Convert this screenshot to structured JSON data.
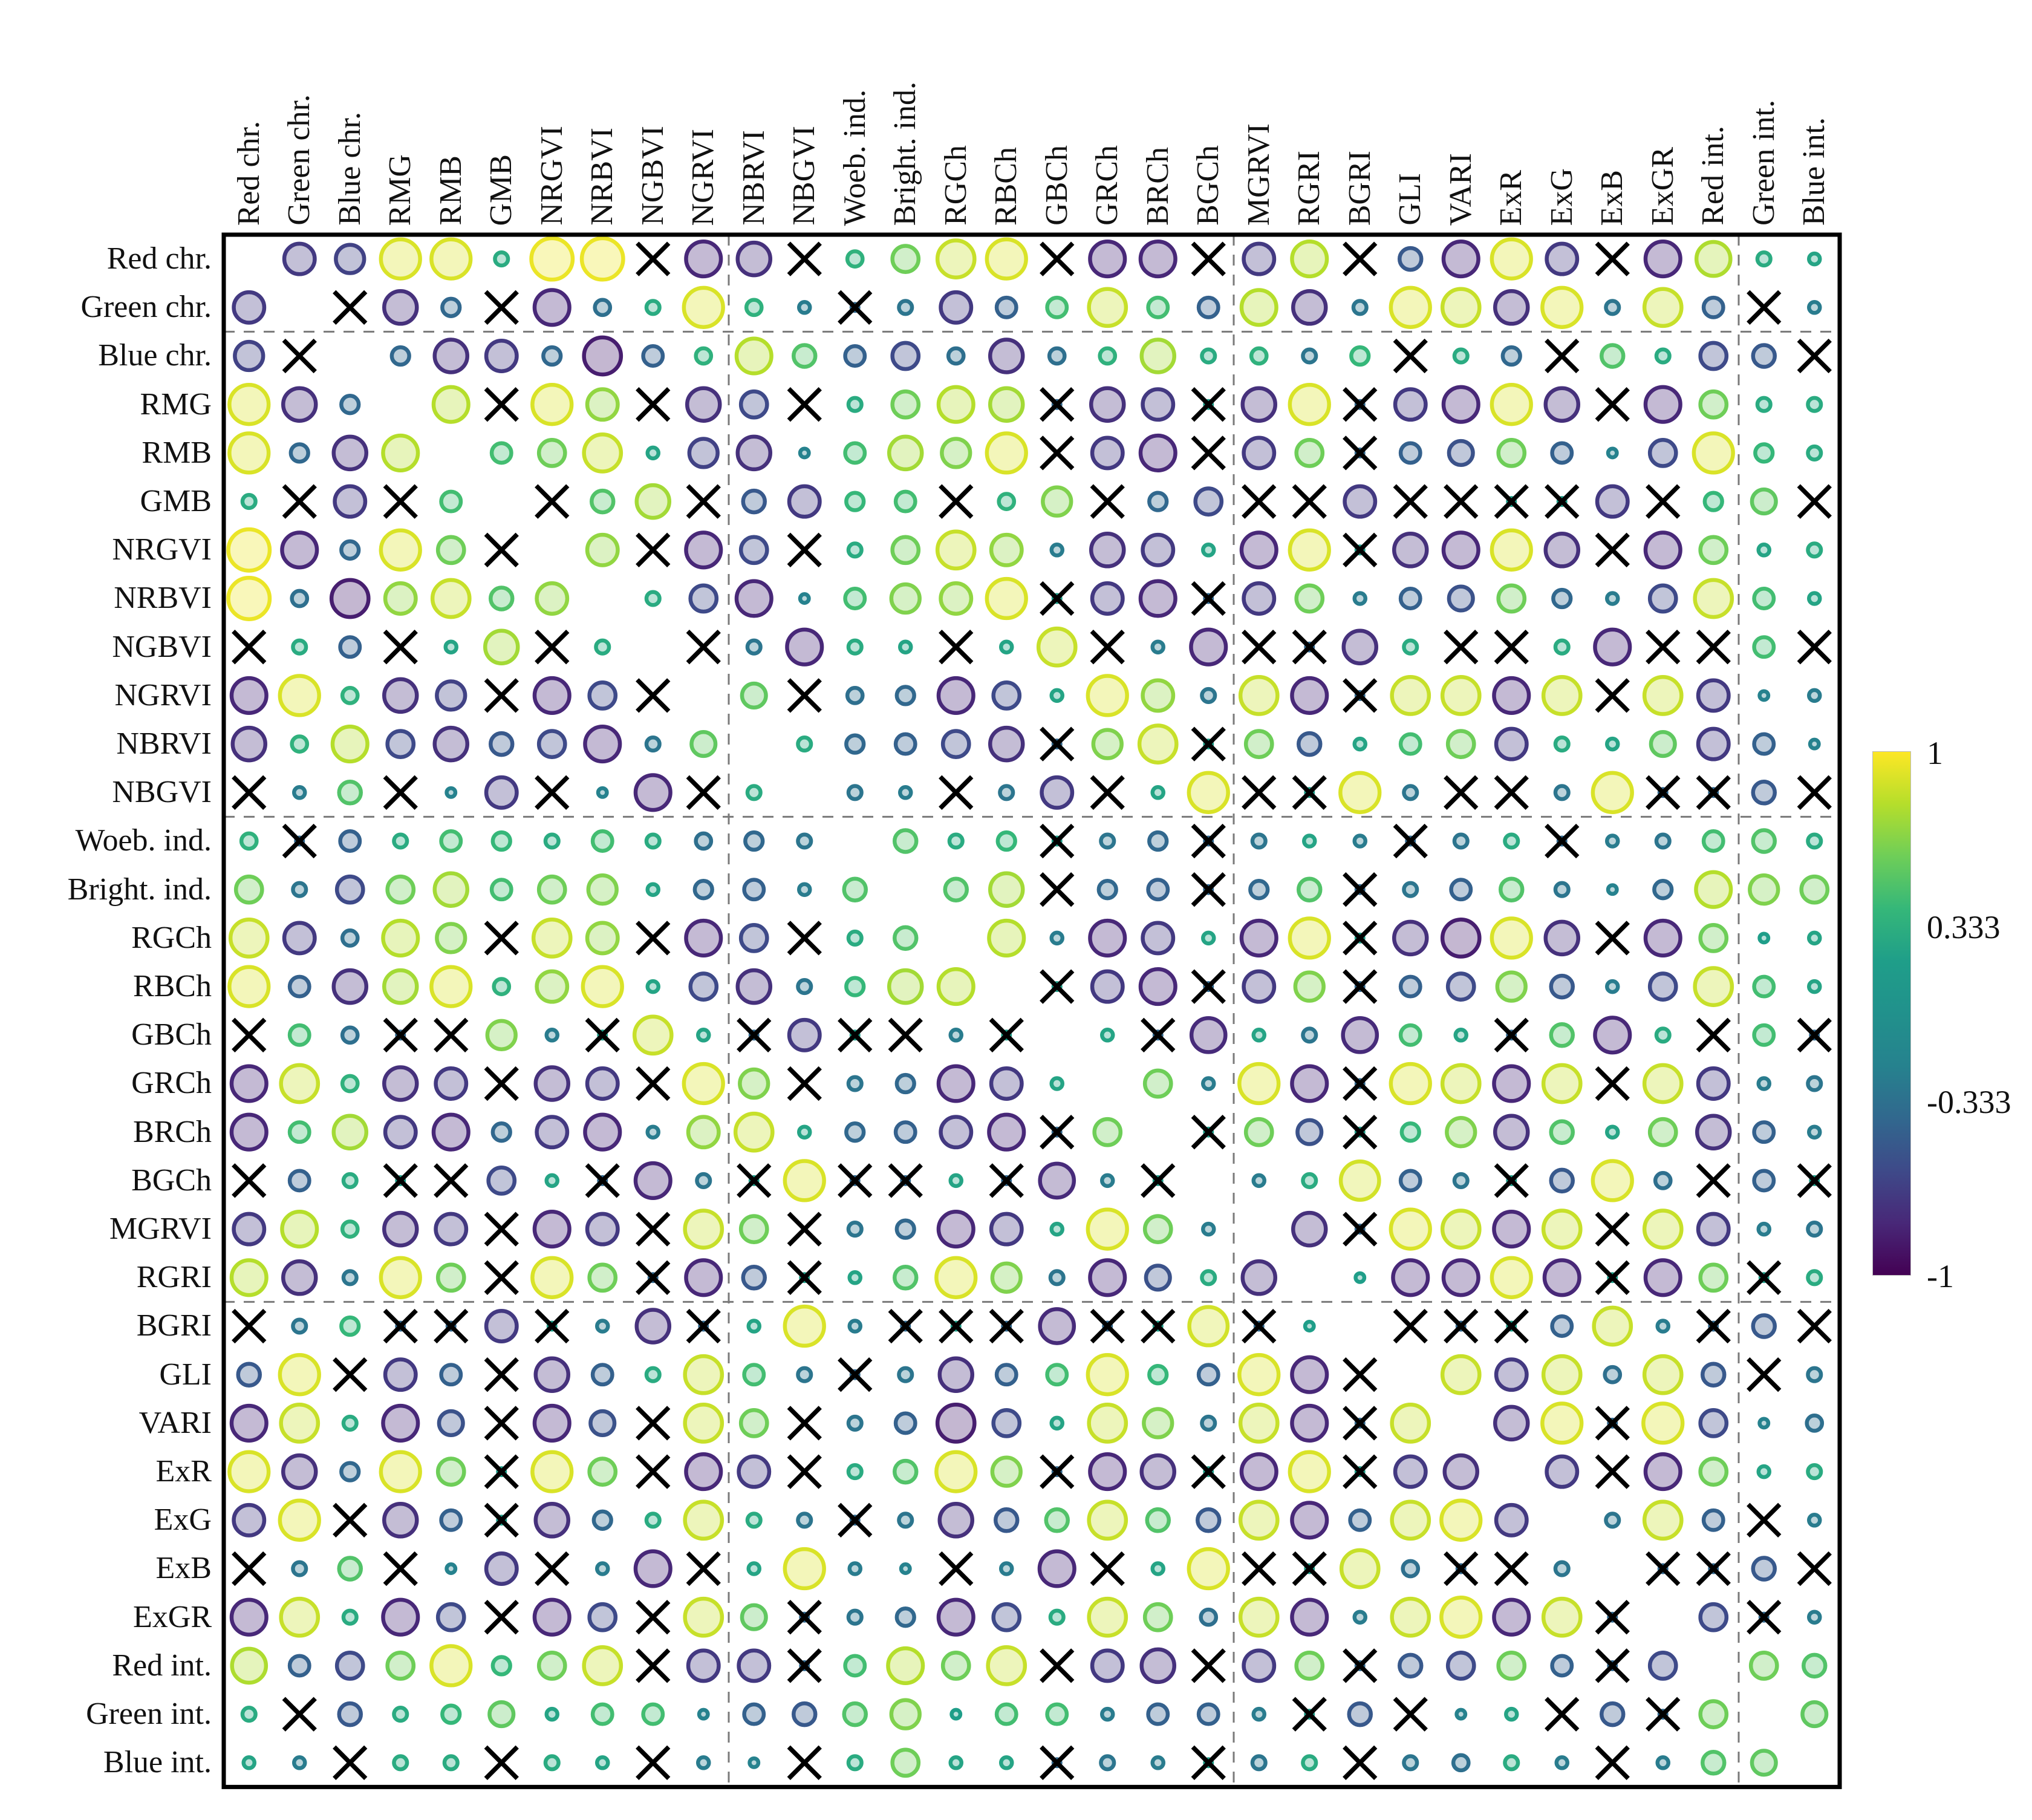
{
  "chart_data": {
    "type": "heatmap",
    "subtype": "correlation-matrix",
    "title": "",
    "variables": [
      "Red chr.",
      "Green chr.",
      "Blue chr.",
      "RMG",
      "RMB",
      "GMB",
      "NRGVI",
      "NRBVI",
      "NGBVI",
      "NGRVI",
      "NBRVI",
      "NBGVI",
      "Woeb. ind.",
      "Bright. ind.",
      "RGCh",
      "RBCh",
      "GBCh",
      "GRCh",
      "BRCh",
      "BGCh",
      "MGRVI",
      "RGRI",
      "BGRI",
      "GLI",
      "VARI",
      "ExR",
      "ExG",
      "ExB",
      "ExGR",
      "Red int.",
      "Green int.",
      "Blue int."
    ],
    "legend_position": "right",
    "colormap": "viridis",
    "value_domain": [
      -1,
      1
    ],
    "colorbar_ticks": [
      "1",
      "0.333",
      "-0.333",
      "-1"
    ],
    "insignificant_marker_meaning": "x = not significant (black cross); xg/xb = cross over tiny teal/blue dot",
    "dashed_dividers": {
      "cols_after_index": [
        9,
        19,
        29
      ],
      "rows_after_index": [
        1,
        11,
        21
      ]
    },
    "matrix": [
      [
        null,
        -0.7,
        -0.65,
        0.9,
        0.9,
        0.3,
        0.95,
        0.95,
        "x",
        -0.8,
        -0.75,
        "x",
        0.35,
        0.6,
        0.85,
        0.9,
        "x",
        -0.8,
        -0.8,
        "x",
        -0.7,
        0.8,
        "x",
        -0.5,
        -0.8,
        0.9,
        -0.7,
        "x",
        -0.8,
        0.78,
        0.3,
        0.25
      ],
      [
        -0.7,
        null,
        "x",
        -0.75,
        -0.4,
        "x",
        -0.8,
        -0.35,
        0.3,
        0.9,
        0.35,
        -0.25,
        "xb",
        -0.3,
        -0.7,
        -0.45,
        0.45,
        0.85,
        0.45,
        -0.45,
        0.8,
        -0.75,
        -0.3,
        0.9,
        0.85,
        -0.75,
        0.9,
        -0.3,
        0.85,
        -0.45,
        "x",
        -0.25
      ],
      [
        -0.65,
        "x",
        null,
        -0.4,
        -0.75,
        -0.7,
        -0.4,
        -0.85,
        -0.45,
        0.35,
        0.8,
        0.5,
        -0.45,
        -0.6,
        -0.35,
        -0.75,
        -0.35,
        0.35,
        0.75,
        0.3,
        0.35,
        -0.3,
        0.4,
        "x",
        0.3,
        -0.4,
        "x",
        0.5,
        0.3,
        -0.6,
        -0.5,
        "x"
      ],
      [
        0.9,
        -0.75,
        -0.4,
        null,
        0.8,
        "x",
        0.9,
        0.7,
        "x",
        -0.75,
        -0.6,
        "x",
        0.3,
        0.6,
        0.8,
        0.75,
        "xb",
        -0.75,
        -0.7,
        "xg",
        -0.75,
        0.9,
        "xb",
        -0.7,
        -0.8,
        0.9,
        -0.75,
        "x",
        -0.8,
        0.6,
        0.3,
        0.3
      ],
      [
        0.9,
        -0.4,
        -0.75,
        0.8,
        null,
        0.45,
        0.6,
        0.85,
        0.25,
        -0.65,
        -0.75,
        -0.2,
        0.45,
        0.75,
        0.65,
        0.9,
        "x",
        -0.7,
        -0.8,
        "x",
        -0.7,
        0.6,
        "xb",
        -0.45,
        -0.55,
        0.6,
        -0.45,
        -0.2,
        -0.6,
        0.9,
        0.4,
        0.3
      ],
      [
        0.3,
        "x",
        -0.7,
        "x",
        0.45,
        null,
        "x",
        0.5,
        0.75,
        "x",
        -0.5,
        -0.7,
        0.4,
        0.45,
        "x",
        0.35,
        0.65,
        "x",
        -0.4,
        -0.6,
        "x",
        "x",
        -0.7,
        "x",
        "x",
        "xg",
        "xg",
        -0.7,
        "x",
        0.4,
        0.55,
        "x"
      ],
      [
        0.95,
        -0.8,
        -0.4,
        0.9,
        0.6,
        "x",
        null,
        0.7,
        "x",
        -0.8,
        -0.6,
        "x",
        0.3,
        0.6,
        0.85,
        0.7,
        -0.25,
        -0.75,
        -0.7,
        0.25,
        -0.8,
        0.9,
        "xg",
        -0.75,
        -0.8,
        0.9,
        -0.75,
        "x",
        -0.8,
        0.6,
        0.25,
        0.3
      ],
      [
        0.95,
        -0.35,
        -0.85,
        0.7,
        0.85,
        0.5,
        0.7,
        null,
        0.3,
        -0.6,
        -0.8,
        -0.2,
        0.45,
        0.65,
        0.7,
        0.9,
        "xg",
        -0.7,
        -0.8,
        "xb",
        -0.7,
        0.6,
        -0.25,
        -0.45,
        -0.55,
        0.6,
        -0.4,
        -0.25,
        -0.6,
        0.85,
        0.45,
        0.25
      ],
      [
        "x",
        0.3,
        -0.45,
        "x",
        0.25,
        0.75,
        "x",
        0.3,
        null,
        "x",
        -0.3,
        -0.8,
        0.3,
        0.25,
        "x",
        0.25,
        0.85,
        "x",
        -0.25,
        -0.8,
        "x",
        "xb",
        -0.75,
        0.3,
        "x",
        "x",
        0.3,
        -0.8,
        "x",
        "x",
        0.45,
        "x"
      ],
      [
        -0.8,
        0.9,
        0.35,
        -0.75,
        -0.65,
        "x",
        -0.8,
        -0.6,
        "x",
        null,
        0.55,
        "x",
        -0.35,
        -0.4,
        -0.8,
        -0.6,
        0.25,
        0.9,
        0.7,
        -0.3,
        0.85,
        -0.8,
        "xb",
        0.85,
        0.85,
        -0.8,
        0.85,
        "x",
        0.85,
        -0.7,
        -0.2,
        -0.25
      ],
      [
        -0.75,
        0.35,
        0.8,
        -0.6,
        -0.75,
        -0.5,
        -0.6,
        -0.8,
        -0.3,
        0.55,
        null,
        0.3,
        -0.4,
        -0.45,
        -0.6,
        -0.75,
        "xb",
        0.65,
        0.85,
        "xg",
        0.6,
        -0.5,
        0.25,
        0.45,
        0.6,
        -0.7,
        0.3,
        0.25,
        0.55,
        -0.7,
        -0.45,
        -0.2
      ],
      [
        "x",
        -0.25,
        0.5,
        "x",
        -0.2,
        -0.7,
        "x",
        -0.2,
        -0.8,
        "x",
        0.3,
        null,
        -0.3,
        -0.25,
        "x",
        -0.3,
        -0.7,
        "x",
        0.25,
        0.9,
        "x",
        "xg",
        0.9,
        -0.3,
        "x",
        "x",
        -0.3,
        0.9,
        "xb",
        "xb",
        -0.5,
        "x"
      ],
      [
        0.35,
        "xb",
        -0.45,
        0.3,
        0.45,
        0.4,
        0.3,
        0.45,
        0.3,
        -0.35,
        -0.4,
        -0.3,
        null,
        0.5,
        0.3,
        0.4,
        "xg",
        -0.3,
        -0.4,
        "xb",
        -0.3,
        0.25,
        -0.25,
        "xb",
        -0.3,
        0.3,
        "xb",
        -0.25,
        -0.3,
        0.45,
        0.5,
        0.3
      ],
      [
        0.6,
        -0.3,
        -0.6,
        0.6,
        0.75,
        0.45,
        0.6,
        0.65,
        0.25,
        -0.4,
        -0.45,
        -0.25,
        0.5,
        null,
        0.5,
        0.75,
        "x",
        -0.4,
        -0.45,
        "xb",
        -0.4,
        0.5,
        "xb",
        -0.3,
        -0.45,
        0.5,
        -0.3,
        -0.2,
        -0.4,
        0.8,
        0.65,
        0.6
      ],
      [
        0.85,
        -0.7,
        -0.35,
        0.8,
        0.65,
        "x",
        0.85,
        0.7,
        "x",
        -0.8,
        -0.6,
        "x",
        0.3,
        0.5,
        null,
        0.8,
        -0.25,
        -0.8,
        -0.7,
        0.25,
        -0.8,
        0.9,
        "xg",
        -0.75,
        -0.85,
        0.9,
        -0.75,
        "x",
        -0.8,
        0.6,
        0.2,
        0.25
      ],
      [
        0.9,
        -0.45,
        -0.75,
        0.75,
        0.9,
        0.35,
        0.7,
        0.9,
        0.25,
        -0.6,
        -0.75,
        -0.3,
        0.4,
        0.75,
        0.8,
        null,
        "xg",
        -0.7,
        -0.8,
        "xb",
        -0.7,
        0.65,
        "xb",
        -0.45,
        -0.6,
        0.65,
        -0.5,
        -0.25,
        -0.6,
        0.85,
        0.45,
        0.25
      ],
      [
        "x",
        0.45,
        -0.35,
        "xb",
        "x",
        0.65,
        -0.25,
        "xg",
        0.85,
        0.25,
        "xb",
        -0.7,
        "xg",
        "x",
        -0.25,
        "xg",
        null,
        0.25,
        "xb",
        -0.78,
        0.25,
        -0.3,
        -0.78,
        0.45,
        0.25,
        "xb",
        0.5,
        -0.8,
        0.3,
        "x",
        0.45,
        "xb"
      ],
      [
        -0.8,
        0.85,
        0.35,
        -0.75,
        -0.7,
        "x",
        -0.75,
        -0.7,
        "x",
        0.9,
        0.65,
        "x",
        -0.3,
        -0.4,
        -0.8,
        -0.7,
        0.25,
        null,
        0.6,
        -0.25,
        0.9,
        -0.8,
        "xb",
        0.9,
        0.85,
        -0.8,
        0.85,
        "x",
        0.85,
        -0.7,
        -0.25,
        -0.3
      ],
      [
        -0.8,
        0.45,
        0.75,
        -0.7,
        -0.8,
        -0.4,
        -0.7,
        -0.8,
        -0.25,
        0.7,
        0.85,
        0.25,
        -0.4,
        -0.45,
        -0.7,
        -0.8,
        "xb",
        0.6,
        null,
        "xg",
        0.6,
        -0.55,
        "xg",
        0.4,
        0.65,
        -0.75,
        0.5,
        0.25,
        0.6,
        -0.75,
        -0.45,
        -0.25
      ],
      [
        "x",
        -0.45,
        0.3,
        "xg",
        "x",
        -0.6,
        0.25,
        "xb",
        -0.8,
        -0.3,
        "xg",
        0.9,
        "xb",
        "xb",
        0.25,
        "xb",
        -0.78,
        -0.25,
        "xg",
        null,
        -0.25,
        0.3,
        0.88,
        -0.45,
        -0.3,
        "xg",
        -0.5,
        0.9,
        -0.35,
        "x",
        -0.45,
        "xg"
      ],
      [
        -0.7,
        0.8,
        0.35,
        -0.75,
        -0.7,
        "x",
        -0.8,
        -0.7,
        "x",
        0.85,
        0.6,
        "x",
        -0.3,
        -0.4,
        -0.8,
        -0.7,
        0.25,
        0.9,
        0.6,
        -0.25,
        null,
        -0.75,
        "xb",
        0.9,
        0.85,
        -0.8,
        0.85,
        "x",
        0.85,
        -0.7,
        -0.25,
        -0.3
      ],
      [
        0.8,
        -0.75,
        -0.3,
        0.9,
        0.6,
        "x",
        0.9,
        0.6,
        "xb",
        -0.8,
        -0.5,
        "xg",
        0.25,
        0.5,
        0.9,
        0.65,
        -0.3,
        -0.8,
        -0.55,
        0.3,
        -0.75,
        null,
        0.2,
        -0.8,
        -0.8,
        0.9,
        -0.8,
        "xg",
        -0.8,
        0.6,
        "xg",
        0.3
      ],
      [
        "x",
        -0.3,
        0.4,
        "xb",
        "xb",
        -0.7,
        "xg",
        -0.25,
        -0.75,
        "xb",
        0.25,
        0.9,
        -0.25,
        "xb",
        "xg",
        "xb",
        -0.78,
        "xb",
        "xg",
        0.88,
        "xb",
        0.2,
        null,
        "x",
        "xb",
        "xg",
        -0.45,
        0.85,
        -0.25,
        "xb",
        -0.5,
        "x"
      ],
      [
        -0.5,
        0.9,
        "x",
        -0.7,
        -0.45,
        "x",
        -0.75,
        -0.45,
        0.3,
        0.85,
        0.45,
        -0.3,
        "xb",
        -0.3,
        -0.75,
        -0.45,
        0.45,
        0.9,
        0.4,
        -0.45,
        0.9,
        -0.8,
        "x",
        null,
        0.85,
        -0.7,
        0.85,
        -0.35,
        0.85,
        -0.5,
        "x",
        -0.3
      ],
      [
        -0.8,
        0.85,
        0.3,
        -0.8,
        -0.55,
        "x",
        -0.8,
        -0.55,
        "x",
        0.85,
        0.6,
        "x",
        -0.3,
        -0.45,
        -0.85,
        -0.6,
        0.25,
        0.85,
        0.65,
        -0.3,
        0.85,
        -0.8,
        "xb",
        0.85,
        null,
        -0.75,
        0.9,
        "xb",
        0.9,
        -0.6,
        -0.2,
        -0.35
      ],
      [
        0.9,
        -0.75,
        -0.4,
        0.9,
        0.6,
        "xg",
        0.9,
        0.6,
        "x",
        -0.8,
        -0.7,
        "x",
        0.3,
        0.5,
        0.9,
        0.65,
        "xb",
        -0.8,
        -0.75,
        "xg",
        -0.8,
        0.9,
        "xg",
        -0.7,
        -0.75,
        null,
        -0.7,
        "x",
        -0.8,
        0.6,
        0.25,
        0.3
      ],
      [
        -0.7,
        0.9,
        "x",
        -0.75,
        -0.45,
        "xg",
        -0.75,
        -0.4,
        0.3,
        0.85,
        0.3,
        -0.3,
        "xb",
        -0.3,
        -0.75,
        -0.5,
        0.5,
        0.85,
        0.5,
        -0.5,
        0.85,
        -0.8,
        -0.45,
        0.85,
        0.9,
        -0.7,
        null,
        -0.3,
        0.85,
        -0.45,
        "x",
        -0.25
      ],
      [
        "x",
        -0.3,
        0.5,
        "x",
        -0.2,
        -0.7,
        "x",
        -0.25,
        -0.8,
        "x",
        0.25,
        0.9,
        -0.25,
        -0.2,
        "x",
        -0.25,
        -0.8,
        "x",
        0.25,
        0.9,
        "x",
        "xg",
        0.85,
        -0.35,
        "xb",
        "x",
        -0.3,
        null,
        "xb",
        "xb",
        -0.5,
        "x"
      ],
      [
        -0.8,
        0.85,
        0.3,
        -0.8,
        -0.6,
        "x",
        -0.8,
        -0.6,
        "x",
        0.85,
        0.55,
        "xb",
        -0.3,
        -0.4,
        -0.8,
        -0.6,
        0.3,
        0.85,
        0.6,
        -0.35,
        0.85,
        -0.8,
        -0.25,
        0.85,
        0.9,
        -0.8,
        0.85,
        "xb",
        null,
        -0.6,
        "xb",
        -0.25
      ],
      [
        0.78,
        -0.45,
        -0.6,
        0.6,
        0.9,
        0.4,
        0.6,
        0.85,
        "x",
        -0.7,
        -0.7,
        "xb",
        0.45,
        0.8,
        0.6,
        0.85,
        "x",
        -0.7,
        -0.75,
        "x",
        -0.7,
        0.6,
        "xb",
        -0.5,
        -0.6,
        0.6,
        -0.45,
        "xb",
        -0.6,
        null,
        0.6,
        0.5
      ],
      [
        0.3,
        "x",
        -0.5,
        0.3,
        0.4,
        0.55,
        0.25,
        0.45,
        0.45,
        -0.2,
        -0.45,
        -0.5,
        0.5,
        0.65,
        0.2,
        0.45,
        0.45,
        -0.25,
        -0.45,
        -0.45,
        -0.25,
        "xg",
        -0.5,
        "x",
        -0.2,
        0.25,
        "x",
        -0.5,
        "xb",
        0.6,
        null,
        0.55
      ],
      [
        0.25,
        -0.25,
        "x",
        0.3,
        0.3,
        "x",
        0.3,
        0.25,
        "x",
        -0.25,
        -0.2,
        "x",
        0.3,
        0.6,
        0.25,
        0.25,
        "xb",
        -0.3,
        -0.25,
        "xg",
        -0.3,
        0.3,
        "x",
        -0.3,
        -0.35,
        0.3,
        -0.25,
        "x",
        -0.25,
        0.5,
        0.55,
        null
      ]
    ],
    "colors": {
      "viridis_anchors": [
        "#440154",
        "#482878",
        "#3e4a89",
        "#31688e",
        "#26828e",
        "#21918c",
        "#1f9e89",
        "#35b779",
        "#6ece58",
        "#b5de2b",
        "#fde725"
      ],
      "x_mark": "#000000",
      "x_dot_teal": "#1f9e89",
      "x_dot_blue": "#31688e",
      "divider": "#7a7a7a",
      "frame": "#000000"
    }
  }
}
